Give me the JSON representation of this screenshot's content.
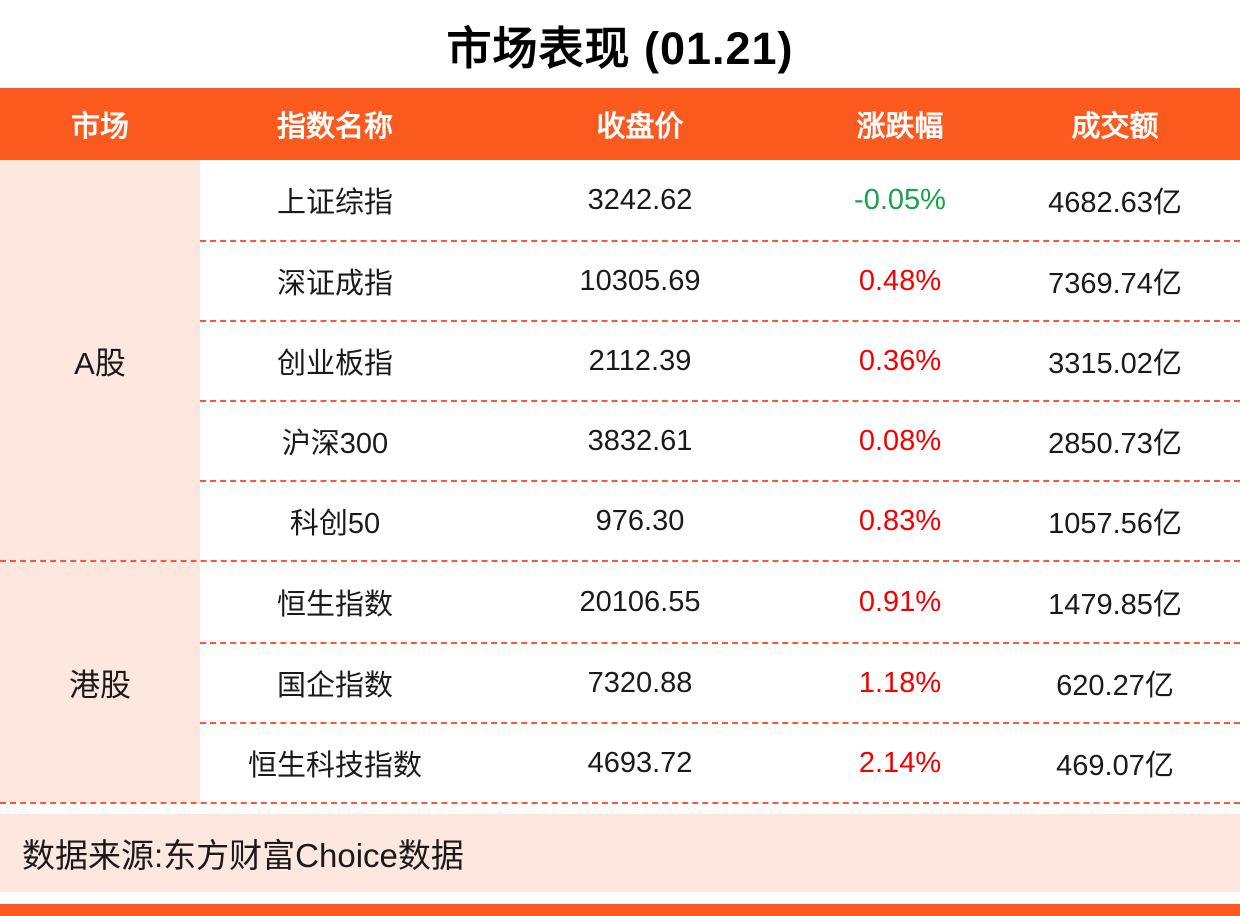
{
  "title": "市场表现 (01.21)",
  "colors": {
    "accent_orange": "#FA5A1E",
    "light_pink": "#FDE7DE",
    "up_red": "#F40000",
    "down_green": "#16A34A",
    "divider_red": "#F8573B",
    "text_dark": "#1A1A1A"
  },
  "chart_data": {
    "type": "table",
    "title": "市场表现 (01.21)",
    "columns": [
      "市场",
      "指数名称",
      "收盘价",
      "涨跌幅",
      "成交额"
    ],
    "groups": [
      {
        "market": "A股",
        "rows": [
          {
            "name": "上证综指",
            "close": "3242.62",
            "change": "-0.05%",
            "trend": "down",
            "turnover": "4682.63亿"
          },
          {
            "name": "深证成指",
            "close": "10305.69",
            "change": "0.48%",
            "trend": "up",
            "turnover": "7369.74亿"
          },
          {
            "name": "创业板指",
            "close": "2112.39",
            "change": "0.36%",
            "trend": "up",
            "turnover": "3315.02亿"
          },
          {
            "name": "沪深300",
            "close": "3832.61",
            "change": "0.08%",
            "trend": "up",
            "turnover": "2850.73亿"
          },
          {
            "name": "科创50",
            "close": "976.30",
            "change": "0.83%",
            "trend": "up",
            "turnover": "1057.56亿"
          }
        ]
      },
      {
        "market": "港股",
        "rows": [
          {
            "name": "恒生指数",
            "close": "20106.55",
            "change": "0.91%",
            "trend": "up",
            "turnover": "1479.85亿"
          },
          {
            "name": "国企指数",
            "close": "7320.88",
            "change": "1.18%",
            "trend": "up",
            "turnover": "620.27亿"
          },
          {
            "name": "恒生科技指数",
            "close": "4693.72",
            "change": "2.14%",
            "trend": "up",
            "turnover": "469.07亿"
          }
        ]
      }
    ]
  },
  "footer": {
    "source": "数据来源:东方财富Choice数据"
  }
}
